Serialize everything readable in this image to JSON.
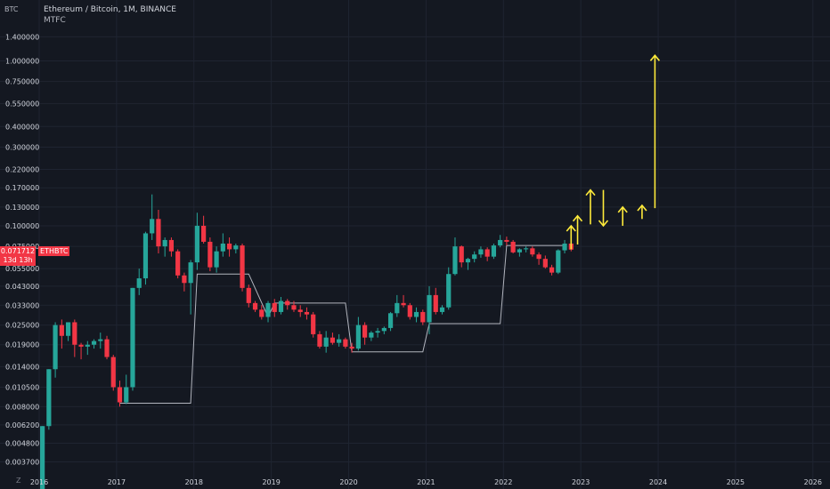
{
  "header": {
    "title": "Ethereum / Bitcoin, 1M, BINANCE",
    "indicator": "MTFC",
    "unit": "BTC"
  },
  "price_tag": {
    "price": "0.071712",
    "countdown": "13d 13h",
    "symbol": "ETHBTC"
  },
  "timezone_button": "Z",
  "colors": {
    "background": "#141821",
    "up": "#26a69a",
    "down": "#f23645",
    "grid": "#1f2431",
    "axis_text": "#d1d4dc",
    "mtfc_line": "#b2b5be",
    "arrow": "#ffeb3b",
    "tag": "#f23645"
  },
  "chart_data": {
    "type": "candlestick",
    "title": "Ethereum / Bitcoin, 1M, BINANCE",
    "y_scale": "log",
    "y_ticks": [
      "1.400000",
      "1.000000",
      "0.750000",
      "0.550000",
      "0.400000",
      "0.300000",
      "0.220000",
      "0.170000",
      "0.130000",
      "0.100000",
      "0.075000",
      "0.055000",
      "0.043000",
      "0.033000",
      "0.025000",
      "0.019000",
      "0.014000",
      "0.010500",
      "0.008000",
      "0.006200",
      "0.004800",
      "0.003700"
    ],
    "x_ticks": [
      "2016",
      "2017",
      "2018",
      "2019",
      "2020",
      "2021",
      "2022",
      "2023",
      "2024",
      "2025",
      "2026"
    ],
    "candles": [
      {
        "date": "2016-01",
        "o": 0.0024,
        "h": 0.0061,
        "l": 0.0024,
        "c": 0.0061
      },
      {
        "date": "2016-02",
        "o": 0.0061,
        "h": 0.0135,
        "l": 0.0058,
        "c": 0.0135
      },
      {
        "date": "2016-03",
        "o": 0.0135,
        "h": 0.026,
        "l": 0.012,
        "c": 0.025
      },
      {
        "date": "2016-04",
        "o": 0.025,
        "h": 0.027,
        "l": 0.018,
        "c": 0.0215
      },
      {
        "date": "2016-05",
        "o": 0.0215,
        "h": 0.026,
        "l": 0.02,
        "c": 0.026
      },
      {
        "date": "2016-06",
        "o": 0.026,
        "h": 0.027,
        "l": 0.016,
        "c": 0.019
      },
      {
        "date": "2016-07",
        "o": 0.019,
        "h": 0.0195,
        "l": 0.0155,
        "c": 0.0185
      },
      {
        "date": "2016-08",
        "o": 0.0185,
        "h": 0.02,
        "l": 0.0165,
        "c": 0.019
      },
      {
        "date": "2016-09",
        "o": 0.019,
        "h": 0.0205,
        "l": 0.018,
        "c": 0.02
      },
      {
        "date": "2016-10",
        "o": 0.02,
        "h": 0.0225,
        "l": 0.018,
        "c": 0.0205
      },
      {
        "date": "2016-11",
        "o": 0.0205,
        "h": 0.0215,
        "l": 0.0155,
        "c": 0.016
      },
      {
        "date": "2016-12",
        "o": 0.016,
        "h": 0.0165,
        "l": 0.01,
        "c": 0.0105
      },
      {
        "date": "2017-01",
        "o": 0.0105,
        "h": 0.0115,
        "l": 0.008,
        "c": 0.0085
      },
      {
        "date": "2017-02",
        "o": 0.0085,
        "h": 0.0125,
        "l": 0.0083,
        "c": 0.0105
      },
      {
        "date": "2017-03",
        "o": 0.0105,
        "h": 0.042,
        "l": 0.01,
        "c": 0.042
      },
      {
        "date": "2017-04",
        "o": 0.042,
        "h": 0.055,
        "l": 0.038,
        "c": 0.048
      },
      {
        "date": "2017-05",
        "o": 0.048,
        "h": 0.092,
        "l": 0.044,
        "c": 0.09
      },
      {
        "date": "2017-06",
        "o": 0.09,
        "h": 0.155,
        "l": 0.082,
        "c": 0.11
      },
      {
        "date": "2017-07",
        "o": 0.11,
        "h": 0.125,
        "l": 0.068,
        "c": 0.075
      },
      {
        "date": "2017-08",
        "o": 0.075,
        "h": 0.085,
        "l": 0.065,
        "c": 0.082
      },
      {
        "date": "2017-09",
        "o": 0.082,
        "h": 0.085,
        "l": 0.065,
        "c": 0.07
      },
      {
        "date": "2017-10",
        "o": 0.07,
        "h": 0.072,
        "l": 0.048,
        "c": 0.05
      },
      {
        "date": "2017-11",
        "o": 0.05,
        "h": 0.052,
        "l": 0.04,
        "c": 0.045
      },
      {
        "date": "2017-12",
        "o": 0.045,
        "h": 0.062,
        "l": 0.029,
        "c": 0.06
      },
      {
        "date": "2018-01",
        "o": 0.06,
        "h": 0.12,
        "l": 0.054,
        "c": 0.1
      },
      {
        "date": "2018-02",
        "o": 0.1,
        "h": 0.115,
        "l": 0.078,
        "c": 0.08
      },
      {
        "date": "2018-03",
        "o": 0.08,
        "h": 0.085,
        "l": 0.053,
        "c": 0.056
      },
      {
        "date": "2018-04",
        "o": 0.056,
        "h": 0.075,
        "l": 0.052,
        "c": 0.07
      },
      {
        "date": "2018-05",
        "o": 0.07,
        "h": 0.09,
        "l": 0.065,
        "c": 0.078
      },
      {
        "date": "2018-06",
        "o": 0.078,
        "h": 0.085,
        "l": 0.065,
        "c": 0.072
      },
      {
        "date": "2018-07",
        "o": 0.072,
        "h": 0.078,
        "l": 0.068,
        "c": 0.076
      },
      {
        "date": "2018-08",
        "o": 0.076,
        "h": 0.078,
        "l": 0.04,
        "c": 0.042
      },
      {
        "date": "2018-09",
        "o": 0.042,
        "h": 0.044,
        "l": 0.032,
        "c": 0.034
      },
      {
        "date": "2018-10",
        "o": 0.034,
        "h": 0.035,
        "l": 0.03,
        "c": 0.031
      },
      {
        "date": "2018-11",
        "o": 0.031,
        "h": 0.033,
        "l": 0.027,
        "c": 0.028
      },
      {
        "date": "2018-12",
        "o": 0.028,
        "h": 0.035,
        "l": 0.026,
        "c": 0.034
      },
      {
        "date": "2019-01",
        "o": 0.034,
        "h": 0.036,
        "l": 0.028,
        "c": 0.03
      },
      {
        "date": "2019-02",
        "o": 0.03,
        "h": 0.037,
        "l": 0.029,
        "c": 0.035
      },
      {
        "date": "2019-03",
        "o": 0.035,
        "h": 0.036,
        "l": 0.031,
        "c": 0.033
      },
      {
        "date": "2019-04",
        "o": 0.033,
        "h": 0.035,
        "l": 0.03,
        "c": 0.031
      },
      {
        "date": "2019-05",
        "o": 0.031,
        "h": 0.033,
        "l": 0.028,
        "c": 0.03
      },
      {
        "date": "2019-06",
        "o": 0.03,
        "h": 0.032,
        "l": 0.027,
        "c": 0.029
      },
      {
        "date": "2019-07",
        "o": 0.029,
        "h": 0.03,
        "l": 0.021,
        "c": 0.022
      },
      {
        "date": "2019-08",
        "o": 0.022,
        "h": 0.023,
        "l": 0.018,
        "c": 0.0185
      },
      {
        "date": "2019-09",
        "o": 0.0185,
        "h": 0.023,
        "l": 0.017,
        "c": 0.021
      },
      {
        "date": "2019-10",
        "o": 0.021,
        "h": 0.0225,
        "l": 0.019,
        "c": 0.0195
      },
      {
        "date": "2019-11",
        "o": 0.0195,
        "h": 0.022,
        "l": 0.0185,
        "c": 0.0205
      },
      {
        "date": "2019-12",
        "o": 0.0205,
        "h": 0.021,
        "l": 0.018,
        "c": 0.0185
      },
      {
        "date": "2020-01",
        "o": 0.0185,
        "h": 0.0195,
        "l": 0.017,
        "c": 0.018
      },
      {
        "date": "2020-02",
        "o": 0.018,
        "h": 0.028,
        "l": 0.0175,
        "c": 0.025
      },
      {
        "date": "2020-03",
        "o": 0.025,
        "h": 0.026,
        "l": 0.019,
        "c": 0.021
      },
      {
        "date": "2020-04",
        "o": 0.021,
        "h": 0.023,
        "l": 0.02,
        "c": 0.0225
      },
      {
        "date": "2020-05",
        "o": 0.0225,
        "h": 0.024,
        "l": 0.021,
        "c": 0.023
      },
      {
        "date": "2020-06",
        "o": 0.023,
        "h": 0.0245,
        "l": 0.022,
        "c": 0.024
      },
      {
        "date": "2020-07",
        "o": 0.024,
        "h": 0.03,
        "l": 0.023,
        "c": 0.0295
      },
      {
        "date": "2020-08",
        "o": 0.0295,
        "h": 0.038,
        "l": 0.028,
        "c": 0.034
      },
      {
        "date": "2020-09",
        "o": 0.034,
        "h": 0.038,
        "l": 0.032,
        "c": 0.033
      },
      {
        "date": "2020-10",
        "o": 0.033,
        "h": 0.034,
        "l": 0.027,
        "c": 0.028
      },
      {
        "date": "2020-11",
        "o": 0.028,
        "h": 0.032,
        "l": 0.026,
        "c": 0.03
      },
      {
        "date": "2020-12",
        "o": 0.03,
        "h": 0.031,
        "l": 0.025,
        "c": 0.026
      },
      {
        "date": "2021-01",
        "o": 0.026,
        "h": 0.043,
        "l": 0.022,
        "c": 0.038
      },
      {
        "date": "2021-02",
        "o": 0.038,
        "h": 0.042,
        "l": 0.029,
        "c": 0.03
      },
      {
        "date": "2021-03",
        "o": 0.03,
        "h": 0.033,
        "l": 0.029,
        "c": 0.032
      },
      {
        "date": "2021-04",
        "o": 0.032,
        "h": 0.056,
        "l": 0.031,
        "c": 0.051
      },
      {
        "date": "2021-05",
        "o": 0.051,
        "h": 0.085,
        "l": 0.05,
        "c": 0.075
      },
      {
        "date": "2021-06",
        "o": 0.075,
        "h": 0.076,
        "l": 0.056,
        "c": 0.06
      },
      {
        "date": "2021-07",
        "o": 0.06,
        "h": 0.064,
        "l": 0.054,
        "c": 0.063
      },
      {
        "date": "2021-08",
        "o": 0.063,
        "h": 0.07,
        "l": 0.06,
        "c": 0.067
      },
      {
        "date": "2021-09",
        "o": 0.067,
        "h": 0.075,
        "l": 0.064,
        "c": 0.072
      },
      {
        "date": "2021-10",
        "o": 0.072,
        "h": 0.074,
        "l": 0.061,
        "c": 0.065
      },
      {
        "date": "2021-11",
        "o": 0.065,
        "h": 0.078,
        "l": 0.063,
        "c": 0.076
      },
      {
        "date": "2021-12",
        "o": 0.076,
        "h": 0.088,
        "l": 0.074,
        "c": 0.082
      },
      {
        "date": "2022-01",
        "o": 0.082,
        "h": 0.086,
        "l": 0.076,
        "c": 0.08
      },
      {
        "date": "2022-02",
        "o": 0.08,
        "h": 0.082,
        "l": 0.068,
        "c": 0.069
      },
      {
        "date": "2022-03",
        "o": 0.069,
        "h": 0.073,
        "l": 0.065,
        "c": 0.072
      },
      {
        "date": "2022-04",
        "o": 0.072,
        "h": 0.075,
        "l": 0.069,
        "c": 0.073
      },
      {
        "date": "2022-05",
        "o": 0.073,
        "h": 0.075,
        "l": 0.065,
        "c": 0.067
      },
      {
        "date": "2022-06",
        "o": 0.067,
        "h": 0.069,
        "l": 0.058,
        "c": 0.063
      },
      {
        "date": "2022-07",
        "o": 0.063,
        "h": 0.066,
        "l": 0.055,
        "c": 0.056
      },
      {
        "date": "2022-08",
        "o": 0.056,
        "h": 0.058,
        "l": 0.05,
        "c": 0.052
      },
      {
        "date": "2022-09",
        "o": 0.052,
        "h": 0.072,
        "l": 0.051,
        "c": 0.071
      },
      {
        "date": "2022-10",
        "o": 0.071,
        "h": 0.082,
        "l": 0.068,
        "c": 0.078
      },
      {
        "date": "2022-11",
        "o": 0.078,
        "h": 0.08,
        "l": 0.07,
        "c": 0.0717
      }
    ],
    "mtfc_line": [
      {
        "date": "2017-01",
        "y": 0.0084
      },
      {
        "date": "2017-12",
        "y": 0.0084
      },
      {
        "date": "2018-01",
        "y": 0.051
      },
      {
        "date": "2018-09",
        "y": 0.051
      },
      {
        "date": "2018-12",
        "y": 0.028
      },
      {
        "date": "2019-01",
        "y": 0.034
      },
      {
        "date": "2019-12",
        "y": 0.034
      },
      {
        "date": "2020-01",
        "y": 0.0172
      },
      {
        "date": "2020-12",
        "y": 0.0172
      },
      {
        "date": "2021-01",
        "y": 0.0255
      },
      {
        "date": "2021-12",
        "y": 0.0255
      },
      {
        "date": "2022-01",
        "y": 0.076
      },
      {
        "date": "2022-10",
        "y": 0.076
      }
    ],
    "annotations": [
      {
        "type": "arrow",
        "x": "2022-11",
        "y_from": 0.072,
        "y_to": 0.1
      },
      {
        "type": "arrow",
        "x": "2022-12",
        "y_from": 0.077,
        "y_to": 0.115
      },
      {
        "type": "arrow",
        "x": "2023-02",
        "y_from": 0.102,
        "y_to": 0.165
      },
      {
        "type": "arrow",
        "x": "2023-04",
        "y_from": 0.165,
        "y_to": 0.1
      },
      {
        "type": "arrow",
        "x": "2023-07",
        "y_from": 0.1,
        "y_to": 0.13
      },
      {
        "type": "arrow",
        "x": "2023-10",
        "y_from": 0.11,
        "y_to": 0.133
      },
      {
        "type": "arrow",
        "x": "2023-12",
        "y_from": 0.128,
        "y_to": 1.08
      }
    ]
  }
}
